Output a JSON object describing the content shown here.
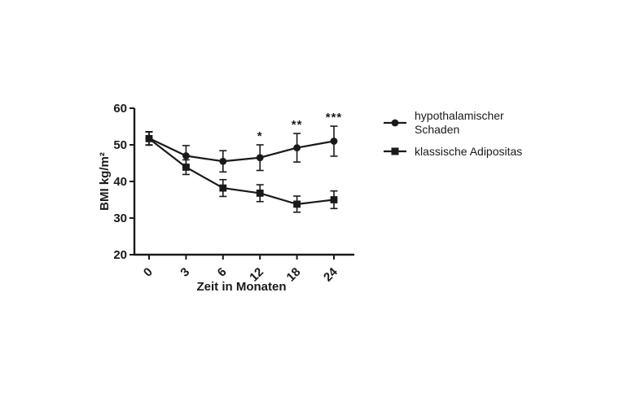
{
  "figure": {
    "background": "#ffffff",
    "ink_color": "#1a1a1a"
  },
  "chart_data": {
    "type": "line",
    "title": "",
    "xlabel": "Zeit in Monaten",
    "ylabel": "BMI kg/m²",
    "categories": [
      "0",
      "3",
      "6",
      "12",
      "18",
      "24"
    ],
    "x_tick_rotation_deg": -45,
    "ylim": [
      20,
      60
    ],
    "yticks": [
      20,
      30,
      40,
      50,
      60
    ],
    "grid": false,
    "legend_position": "right-outside",
    "error_bars": true,
    "series": [
      {
        "name": "hypothalamischer Schaden",
        "marker": "circle",
        "color": "#1a1a1a",
        "values": [
          51.8,
          47.0,
          45.5,
          46.5,
          49.2,
          51.0
        ],
        "errors": [
          1.8,
          2.8,
          2.9,
          3.5,
          3.9,
          4.1
        ]
      },
      {
        "name": "klassische Adipositas",
        "marker": "square",
        "color": "#1a1a1a",
        "values": [
          51.7,
          43.9,
          38.2,
          36.8,
          33.8,
          35.0
        ],
        "errors": [
          1.8,
          2.0,
          2.3,
          2.3,
          2.2,
          2.4
        ]
      }
    ],
    "annotations": [
      {
        "category": "12",
        "series": "hypothalamischer Schaden",
        "text": "*"
      },
      {
        "category": "18",
        "series": "hypothalamischer Schaden",
        "text": "**"
      },
      {
        "category": "24",
        "series": "hypothalamischer Schaden",
        "text": "***"
      }
    ]
  }
}
